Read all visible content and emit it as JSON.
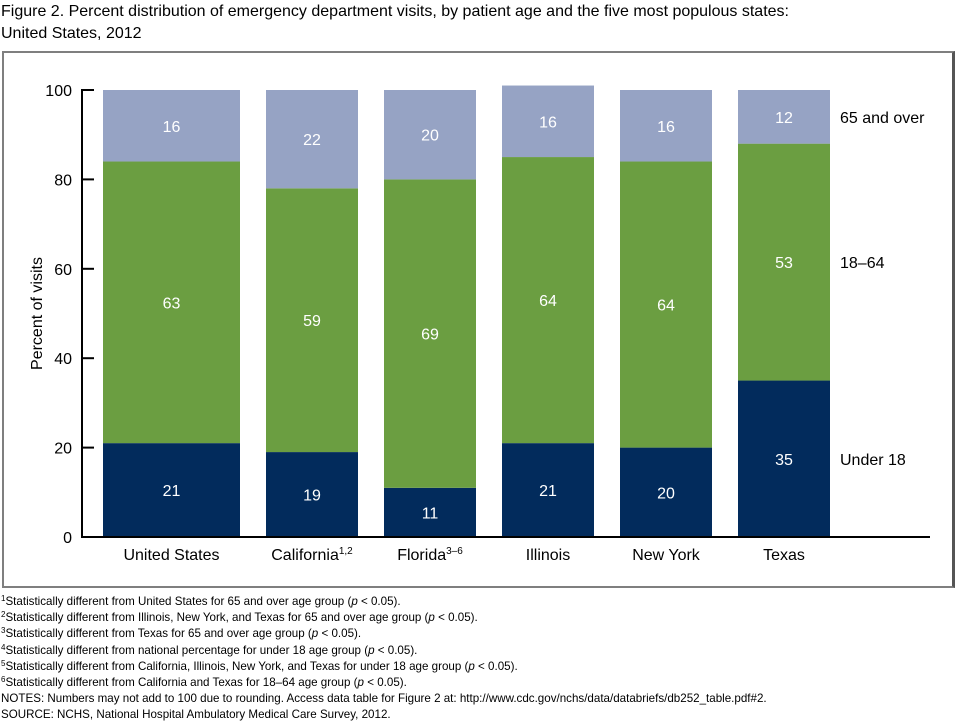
{
  "title": {
    "line1": "Figure 2. Percent distribution of emergency department visits, by patient age and the five most populous states:",
    "line2": "United States, 2012"
  },
  "chart_data": {
    "type": "bar",
    "stacked": true,
    "title": "Percent distribution of emergency department visits, by patient age and the five most populous states: United States, 2012",
    "xlabel": "",
    "ylabel": "Percent of visits",
    "ylim": [
      0,
      100
    ],
    "yticks": [
      0,
      20,
      40,
      60,
      80,
      100
    ],
    "grid": false,
    "categories": [
      {
        "name": "United States",
        "sup": ""
      },
      {
        "name": "California",
        "sup": "1,2"
      },
      {
        "name": "Florida",
        "sup": "3–6"
      },
      {
        "name": "Illinois",
        "sup": ""
      },
      {
        "name": "New York",
        "sup": ""
      },
      {
        "name": "Texas",
        "sup": ""
      }
    ],
    "series": [
      {
        "name": "Under 18",
        "color": "#022b5c",
        "label_color": "#ffffff",
        "values": [
          21,
          19,
          11,
          21,
          20,
          35
        ]
      },
      {
        "name": "18–64",
        "color": "#6b9e41",
        "label_color": "#ffffff",
        "values": [
          63,
          59,
          69,
          64,
          64,
          53
        ]
      },
      {
        "name": "65 and over",
        "color": "#96a3c4",
        "label_color": "#ffffff",
        "values": [
          16,
          22,
          20,
          16,
          16,
          12
        ]
      }
    ],
    "legend_placement": "right, inline labels beside last bar"
  },
  "footnotes": [
    {
      "sup": "1",
      "text": "Statistically different from United States for 65 and over age group (",
      "p": "p",
      "tail": " < 0.05)."
    },
    {
      "sup": "2",
      "text": "Statistically different from Illinois, New York, and Texas for 65 and over age group (",
      "p": "p",
      "tail": " < 0.05)."
    },
    {
      "sup": "3",
      "text": "Statistically different from Texas for 65 and over age group (",
      "p": "p",
      "tail": " < 0.05)."
    },
    {
      "sup": "4",
      "text": "Statistically different from national percentage for under 18 age group (",
      "p": "p",
      "tail": " < 0.05)."
    },
    {
      "sup": "5",
      "text": "Statistically different from California, Illinois, New York, and Texas for under 18 age group (",
      "p": "p",
      "tail": " < 0.05)."
    },
    {
      "sup": "6",
      "text": "Statistically different from California and Texas for 18–64 age group (",
      "p": "p",
      "tail": " < 0.05)."
    }
  ],
  "notes": "NOTES: Numbers may not add to 100 due to rounding. Access data table for Figure 2 at: http://www.cdc.gov/nchs/data/databriefs/db252_table.pdf#2.",
  "source": "SOURCE: NCHS, National Hospital Ambulatory Medical Care Survey, 2012."
}
